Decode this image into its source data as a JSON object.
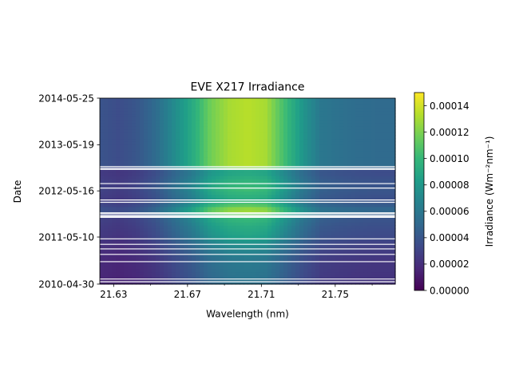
{
  "chart_data": {
    "type": "heatmap",
    "title": "EVE X217 Irradiance",
    "xlabel": "Wavelength (nm)",
    "ylabel": "Date",
    "x_ticks": [
      "21.63",
      "21.67",
      "21.71",
      "21.75"
    ],
    "x_tick_values": [
      21.63,
      21.67,
      21.71,
      21.75
    ],
    "x_minor_tick_values": [
      21.65,
      21.69,
      21.73,
      21.77
    ],
    "xlim": [
      21.6225,
      21.7825
    ],
    "y_ticks": [
      "2014-05-25",
      "2013-05-19",
      "2012-05-16",
      "2011-05-10",
      "2010-04-30"
    ],
    "y_tick_values": [
      2014.4,
      2013.38,
      2012.37,
      2011.36,
      2010.33
    ],
    "ylim": [
      2010.33,
      2014.4
    ],
    "wavelength_profile": [
      {
        "wavelength": 21.6225,
        "relative": 0.3
      },
      {
        "wavelength": 21.6325,
        "relative": 0.27
      },
      {
        "wavelength": 21.6425,
        "relative": 0.31
      },
      {
        "wavelength": 21.6525,
        "relative": 0.4
      },
      {
        "wavelength": 21.6625,
        "relative": 0.55
      },
      {
        "wavelength": 21.6725,
        "relative": 0.7
      },
      {
        "wavelength": 21.6825,
        "relative": 0.9
      },
      {
        "wavelength": 21.6925,
        "relative": 1.0
      },
      {
        "wavelength": 21.7025,
        "relative": 1.03
      },
      {
        "wavelength": 21.7125,
        "relative": 1.0
      },
      {
        "wavelength": 21.7225,
        "relative": 0.8
      },
      {
        "wavelength": 21.7325,
        "relative": 0.6
      },
      {
        "wavelength": 21.7425,
        "relative": 0.46
      },
      {
        "wavelength": 21.7525,
        "relative": 0.43
      },
      {
        "wavelength": 21.7625,
        "relative": 0.41
      },
      {
        "wavelength": 21.7725,
        "relative": 0.4
      },
      {
        "wavelength": 21.7825,
        "relative": 0.4
      }
    ],
    "peak_irradiance_by_date": [
      {
        "date": 2010.33,
        "peak": 5.5e-05
      },
      {
        "date": 2010.6,
        "peak": 5.8e-05
      },
      {
        "date": 2010.9,
        "peak": 6e-05
      },
      {
        "date": 2011.2,
        "peak": 7.2e-05
      },
      {
        "date": 2011.4,
        "peak": 8.5e-05
      },
      {
        "date": 2011.6,
        "peak": 9e-05
      },
      {
        "date": 2011.8,
        "peak": 0.0001
      },
      {
        "date": 2011.95,
        "peak": 0.00013
      },
      {
        "date": 2012.05,
        "peak": 0.00011
      },
      {
        "date": 2012.2,
        "peak": 9e-05
      },
      {
        "date": 2012.4,
        "peak": 0.0001
      },
      {
        "date": 2012.6,
        "peak": 9.5e-05
      },
      {
        "date": 2012.8,
        "peak": 8.5e-05
      },
      {
        "date": 2012.9,
        "peak": 0.00013
      },
      {
        "date": 2013.2,
        "peak": 0.00013
      },
      {
        "date": 2013.6,
        "peak": 0.00013
      },
      {
        "date": 2014.0,
        "peak": 0.00013
      },
      {
        "date": 2014.4,
        "peak": 0.00013
      }
    ],
    "data_gaps": [
      2010.38,
      2010.44,
      2010.82,
      2010.98,
      2011.1,
      2011.2,
      2011.32,
      2011.79,
      2011.81,
      2011.83,
      2011.87,
      2011.89,
      2012.12,
      2012.17,
      2012.43,
      2012.53,
      2012.84,
      2012.86,
      2012.9
    ],
    "colorbar": {
      "label": "Irradiance (Wm⁻²nm⁻¹)",
      "colormap": "viridis",
      "range": [
        0,
        0.00015
      ],
      "ticks": [
        "0.00000",
        "0.00002",
        "0.00004",
        "0.00006",
        "0.00008",
        "0.00010",
        "0.00012",
        "0.00014"
      ],
      "tick_values": [
        0,
        2e-05,
        4e-05,
        6e-05,
        8e-05,
        0.0001,
        0.00012,
        0.00014
      ]
    }
  }
}
